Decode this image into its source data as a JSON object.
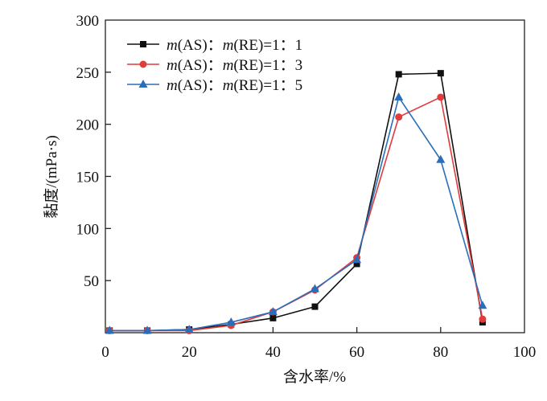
{
  "chart_data": {
    "type": "line",
    "title": "",
    "xlabel": "含水率/%",
    "ylabel": "黏度/(mPa·s)",
    "xlim": [
      0,
      100
    ],
    "ylim": [
      0,
      300
    ],
    "xticks": [
      0,
      20,
      40,
      60,
      80,
      100
    ],
    "yticks": [
      50,
      100,
      150,
      200,
      250,
      300
    ],
    "grid": false,
    "legend_placement": "top-left",
    "x": [
      1,
      10,
      20,
      30,
      40,
      50,
      60,
      70,
      80,
      90
    ],
    "series": [
      {
        "name": "m(AS)：m(RE)=1：1",
        "color": "#111111",
        "marker": "square",
        "values": [
          2,
          2,
          3,
          8,
          14,
          25,
          66,
          248,
          249,
          10
        ]
      },
      {
        "name": "m(AS)：m(RE)=1：3",
        "color": "#e03c3c",
        "marker": "circle",
        "values": [
          2,
          2,
          2,
          7,
          20,
          41,
          72,
          207,
          226,
          13
        ]
      },
      {
        "name": "m(AS)：m(RE)=1：5",
        "color": "#2a6ebb",
        "marker": "triangle",
        "values": [
          2,
          2,
          3,
          10,
          20,
          42,
          70,
          226,
          166,
          26
        ]
      }
    ]
  }
}
